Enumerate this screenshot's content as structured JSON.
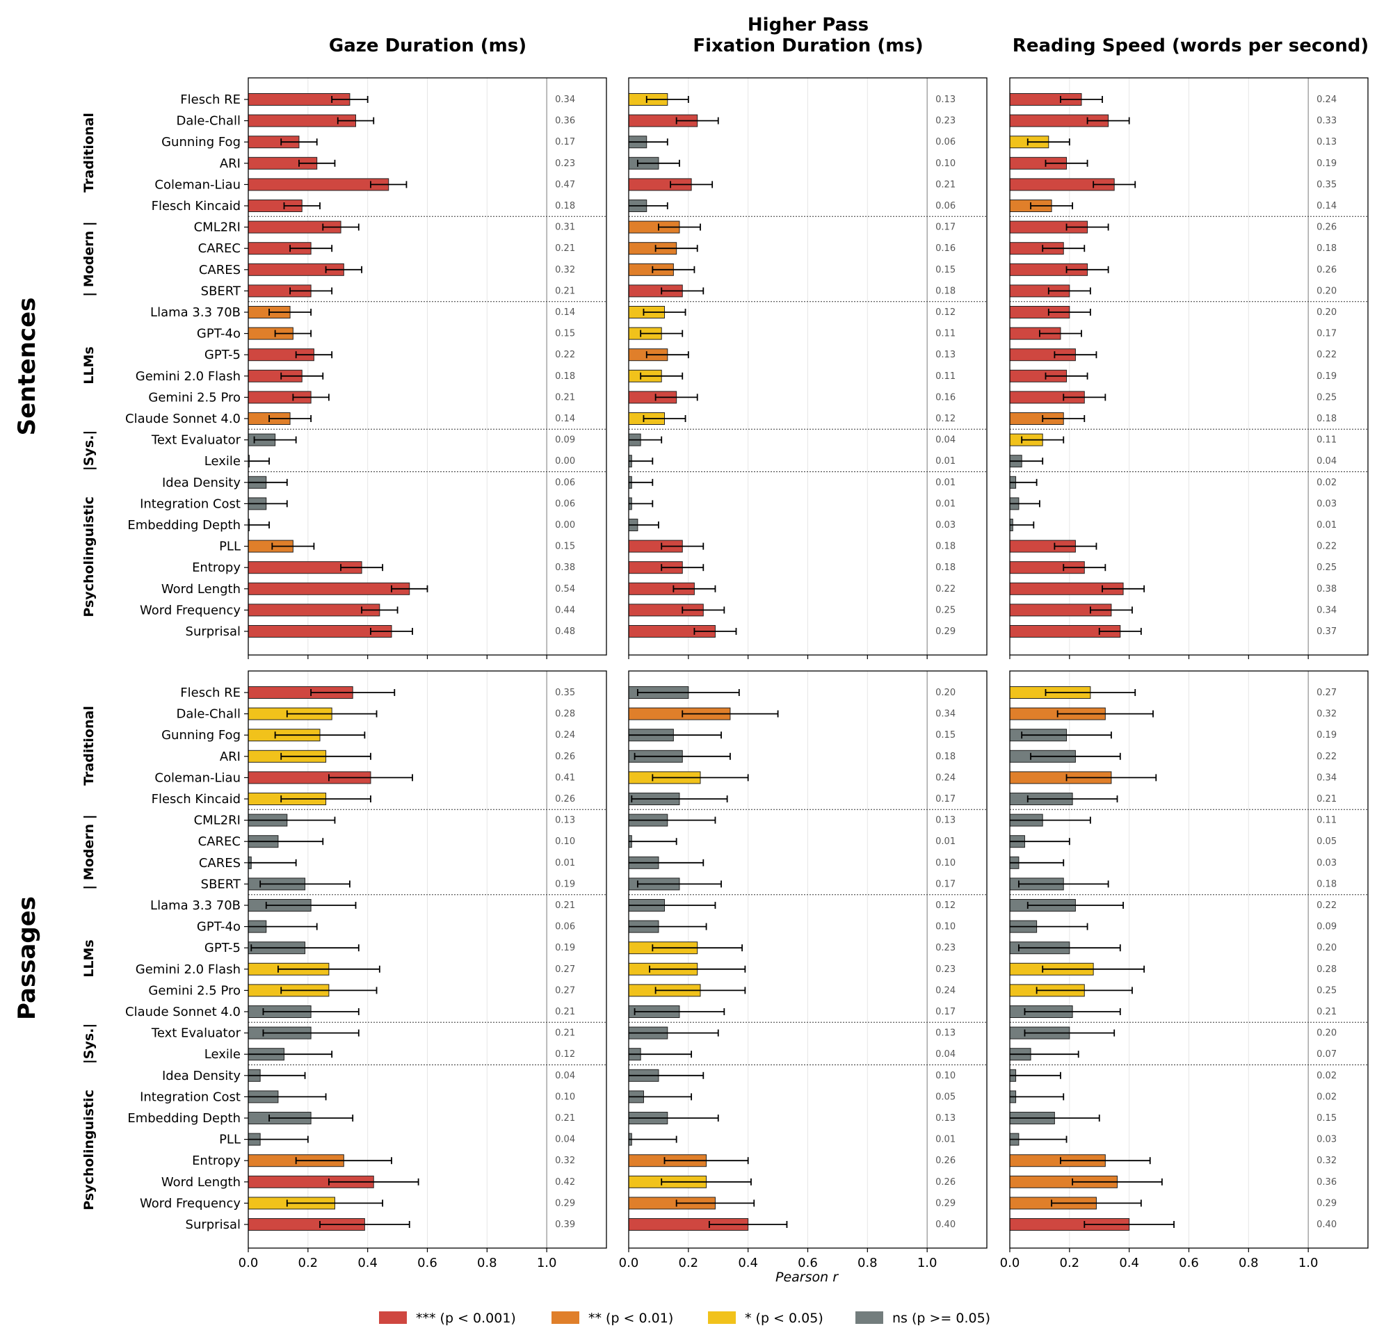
{
  "panel_titles": [
    "Gaze Duration (ms)",
    "Higher Pass",
    "Fixation Duration (ms)",
    "Reading Speed (words per second)"
  ],
  "row_titles": [
    "Sentences",
    "Passages"
  ],
  "x_axis_label": "Pearson r",
  "legend": {
    "placement": "bottom-center",
    "items": [
      {
        "label": "*** (p < 0.001)",
        "color": "#CF4740"
      },
      {
        "label": "** (p < 0.01)",
        "color": "#E07F2A"
      },
      {
        "label": "* (p < 0.05)",
        "color": "#F1C21B"
      },
      {
        "label": "ns (p >= 0.05)",
        "color": "#737D7D"
      }
    ]
  },
  "chart_data": {
    "type": "bar",
    "orientation": "horizontal",
    "xlim": [
      0,
      1.2
    ],
    "xticks": [
      0.0,
      0.2,
      0.4,
      0.6,
      0.8,
      1.0
    ],
    "reference_line_x": 1.0,
    "grid": "vertical",
    "color_legend": {
      "***": "#CF4740",
      "**": "#E07F2A",
      "*": "#F1C21B",
      "ns": "#737D7D"
    },
    "categories": [
      "Flesch RE",
      "Dale-Chall",
      "Gunning Fog",
      "ARI",
      "Coleman-Liau",
      "Flesch Kincaid",
      "CML2RI",
      "CAREC",
      "CARES",
      "SBERT",
      "Llama 3.3 70B",
      "GPT-4o",
      "GPT-5",
      "Gemini 2.0 Flash",
      "Gemini 2.5 Pro",
      "Claude Sonnet 4.0",
      "Text Evaluator",
      "Lexile",
      "Idea Density",
      "Integration Cost",
      "Embedding Depth",
      "PLL",
      "Entropy",
      "Word Length",
      "Word Frequency",
      "Surprisal"
    ],
    "groups": [
      {
        "label": "Traditional",
        "count": 6
      },
      {
        "label": "| Modern |",
        "count": 4
      },
      {
        "label": "LLMs",
        "count": 6
      },
      {
        "label": "|Sys.|",
        "count": 2
      },
      {
        "label": "Psycholinguistic",
        "count": 8
      }
    ],
    "panels": [
      {
        "row": "Sentences",
        "column": "Gaze Duration (ms)",
        "values": [
          0.34,
          0.36,
          0.17,
          0.23,
          0.47,
          0.18,
          0.31,
          0.21,
          0.32,
          0.21,
          0.14,
          0.15,
          0.22,
          0.18,
          0.21,
          0.14,
          0.09,
          0.0,
          0.06,
          0.06,
          0.0,
          0.15,
          0.38,
          0.54,
          0.44,
          0.48
        ],
        "labels": [
          "0.34",
          "0.36",
          "0.17",
          "0.23",
          "0.47",
          "0.18",
          "0.31",
          "0.21",
          "0.32",
          "0.21",
          "0.14",
          "0.15",
          "0.22",
          "0.18",
          "0.21",
          "0.14",
          "0.09",
          "0.00",
          "0.06",
          "0.06",
          "0.00",
          "0.15",
          "0.38",
          "0.54",
          "0.44",
          "0.48"
        ],
        "err": [
          0.06,
          0.06,
          0.06,
          0.06,
          0.06,
          0.06,
          0.06,
          0.07,
          0.06,
          0.07,
          0.07,
          0.06,
          0.06,
          0.07,
          0.06,
          0.07,
          0.07,
          0.07,
          0.07,
          0.07,
          0.07,
          0.07,
          0.07,
          0.06,
          0.06,
          0.07
        ],
        "sig": [
          "***",
          "***",
          "***",
          "***",
          "***",
          "***",
          "***",
          "***",
          "***",
          "***",
          "**",
          "**",
          "***",
          "***",
          "***",
          "**",
          "ns",
          "ns",
          "ns",
          "ns",
          "ns",
          "**",
          "***",
          "***",
          "***",
          "***"
        ]
      },
      {
        "row": "Sentences",
        "column": "Higher Pass Fixation Duration (ms)",
        "values": [
          0.13,
          0.23,
          0.06,
          0.1,
          0.21,
          0.06,
          0.17,
          0.16,
          0.15,
          0.18,
          0.12,
          0.11,
          0.13,
          0.11,
          0.16,
          0.12,
          0.04,
          0.01,
          0.01,
          0.01,
          0.03,
          0.18,
          0.18,
          0.22,
          0.25,
          0.29
        ],
        "labels": [
          "0.13",
          "0.23",
          "0.06",
          "0.10",
          "0.21",
          "0.06",
          "0.17",
          "0.16",
          "0.15",
          "0.18",
          "0.12",
          "0.11",
          "0.13",
          "0.11",
          "0.16",
          "0.12",
          "0.04",
          "0.01",
          "0.01",
          "0.01",
          "0.03",
          "0.18",
          "0.18",
          "0.22",
          "0.25",
          "0.29"
        ],
        "err": [
          0.07,
          0.07,
          0.07,
          0.07,
          0.07,
          0.07,
          0.07,
          0.07,
          0.07,
          0.07,
          0.07,
          0.07,
          0.07,
          0.07,
          0.07,
          0.07,
          0.07,
          0.07,
          0.07,
          0.07,
          0.07,
          0.07,
          0.07,
          0.07,
          0.07,
          0.07
        ],
        "sig": [
          "*",
          "***",
          "ns",
          "ns",
          "***",
          "ns",
          "**",
          "**",
          "**",
          "***",
          "*",
          "*",
          "**",
          "*",
          "***",
          "*",
          "ns",
          "ns",
          "ns",
          "ns",
          "ns",
          "***",
          "***",
          "***",
          "***",
          "***"
        ]
      },
      {
        "row": "Sentences",
        "column": "Reading Speed (words per second)",
        "values": [
          0.24,
          0.33,
          0.13,
          0.19,
          0.35,
          0.14,
          0.26,
          0.18,
          0.26,
          0.2,
          0.2,
          0.17,
          0.22,
          0.19,
          0.25,
          0.18,
          0.11,
          0.04,
          0.02,
          0.03,
          0.01,
          0.22,
          0.25,
          0.38,
          0.34,
          0.37
        ],
        "labels": [
          "0.24",
          "0.33",
          "0.13",
          "0.19",
          "0.35",
          "0.14",
          "0.26",
          "0.18",
          "0.26",
          "0.20",
          "0.20",
          "0.17",
          "0.22",
          "0.19",
          "0.25",
          "0.18",
          "0.11",
          "0.04",
          "0.02",
          "0.03",
          "0.01",
          "0.22",
          "0.25",
          "0.38",
          "0.34",
          "0.37"
        ],
        "err": [
          0.07,
          0.07,
          0.07,
          0.07,
          0.07,
          0.07,
          0.07,
          0.07,
          0.07,
          0.07,
          0.07,
          0.07,
          0.07,
          0.07,
          0.07,
          0.07,
          0.07,
          0.07,
          0.07,
          0.07,
          0.07,
          0.07,
          0.07,
          0.07,
          0.07,
          0.07
        ],
        "sig": [
          "***",
          "***",
          "*",
          "***",
          "***",
          "**",
          "***",
          "***",
          "***",
          "***",
          "***",
          "***",
          "***",
          "***",
          "***",
          "**",
          "*",
          "ns",
          "ns",
          "ns",
          "ns",
          "***",
          "***",
          "***",
          "***",
          "***"
        ]
      },
      {
        "row": "Passages",
        "column": "Gaze Duration (ms)",
        "values": [
          0.35,
          0.28,
          0.24,
          0.26,
          0.41,
          0.26,
          0.13,
          0.1,
          0.01,
          0.19,
          0.21,
          0.06,
          0.19,
          0.27,
          0.27,
          0.21,
          0.21,
          0.12,
          0.04,
          0.1,
          0.21,
          0.04,
          0.32,
          0.42,
          0.29,
          0.39
        ],
        "labels": [
          "0.35",
          "0.28",
          "0.24",
          "0.26",
          "0.41",
          "0.26",
          "0.13",
          "0.10",
          "0.01",
          "0.19",
          "0.21",
          "0.06",
          "0.19",
          "0.27",
          "0.27",
          "0.21",
          "0.21",
          "0.12",
          "0.04",
          "0.10",
          "0.21",
          "0.04",
          "0.32",
          "0.42",
          "0.29",
          "0.39"
        ],
        "err": [
          0.14,
          0.15,
          0.15,
          0.15,
          0.14,
          0.15,
          0.16,
          0.15,
          0.15,
          0.15,
          0.15,
          0.17,
          0.18,
          0.17,
          0.16,
          0.16,
          0.16,
          0.16,
          0.15,
          0.16,
          0.14,
          0.16,
          0.16,
          0.15,
          0.16,
          0.15
        ],
        "sig": [
          "***",
          "*",
          "*",
          "*",
          "***",
          "*",
          "ns",
          "ns",
          "ns",
          "ns",
          "ns",
          "ns",
          "ns",
          "*",
          "*",
          "ns",
          "ns",
          "ns",
          "ns",
          "ns",
          "ns",
          "ns",
          "**",
          "***",
          "*",
          "***"
        ]
      },
      {
        "row": "Passages",
        "column": "Higher Pass Fixation Duration (ms)",
        "values": [
          0.2,
          0.34,
          0.15,
          0.18,
          0.24,
          0.17,
          0.13,
          0.01,
          0.1,
          0.17,
          0.12,
          0.1,
          0.23,
          0.23,
          0.24,
          0.17,
          0.13,
          0.04,
          0.1,
          0.05,
          0.13,
          0.01,
          0.26,
          0.26,
          0.29,
          0.4
        ],
        "labels": [
          "0.20",
          "0.34",
          "0.15",
          "0.18",
          "0.24",
          "0.17",
          "0.13",
          "0.01",
          "0.10",
          "0.17",
          "0.12",
          "0.10",
          "0.23",
          "0.23",
          "0.24",
          "0.17",
          "0.13",
          "0.04",
          "0.10",
          "0.05",
          "0.13",
          "0.01",
          "0.26",
          "0.26",
          "0.29",
          "0.40"
        ],
        "err": [
          0.17,
          0.16,
          0.16,
          0.16,
          0.16,
          0.16,
          0.16,
          0.15,
          0.15,
          0.14,
          0.17,
          0.16,
          0.15,
          0.16,
          0.15,
          0.15,
          0.17,
          0.17,
          0.15,
          0.16,
          0.17,
          0.15,
          0.14,
          0.15,
          0.13,
          0.13
        ],
        "sig": [
          "ns",
          "**",
          "ns",
          "ns",
          "*",
          "ns",
          "ns",
          "ns",
          "ns",
          "ns",
          "ns",
          "ns",
          "*",
          "*",
          "*",
          "ns",
          "ns",
          "ns",
          "ns",
          "ns",
          "ns",
          "ns",
          "**",
          "*",
          "**",
          "***"
        ]
      },
      {
        "row": "Passages",
        "column": "Reading Speed (words per second)",
        "values": [
          0.27,
          0.32,
          0.19,
          0.22,
          0.34,
          0.21,
          0.11,
          0.05,
          0.03,
          0.18,
          0.22,
          0.09,
          0.2,
          0.28,
          0.25,
          0.21,
          0.2,
          0.07,
          0.02,
          0.02,
          0.15,
          0.03,
          0.32,
          0.36,
          0.29,
          0.4
        ],
        "labels": [
          "0.27",
          "0.32",
          "0.19",
          "0.22",
          "0.34",
          "0.21",
          "0.11",
          "0.05",
          "0.03",
          "0.18",
          "0.22",
          "0.09",
          "0.20",
          "0.28",
          "0.25",
          "0.21",
          "0.20",
          "0.07",
          "0.02",
          "0.02",
          "0.15",
          "0.03",
          "0.32",
          "0.36",
          "0.29",
          "0.40"
        ],
        "err": [
          0.15,
          0.16,
          0.15,
          0.15,
          0.15,
          0.15,
          0.16,
          0.15,
          0.15,
          0.15,
          0.16,
          0.17,
          0.17,
          0.17,
          0.16,
          0.16,
          0.15,
          0.16,
          0.15,
          0.16,
          0.15,
          0.16,
          0.15,
          0.15,
          0.15,
          0.15
        ],
        "sig": [
          "*",
          "**",
          "ns",
          "ns",
          "**",
          "ns",
          "ns",
          "ns",
          "ns",
          "ns",
          "ns",
          "ns",
          "ns",
          "*",
          "*",
          "ns",
          "ns",
          "ns",
          "ns",
          "ns",
          "ns",
          "ns",
          "**",
          "**",
          "**",
          "***"
        ]
      }
    ]
  }
}
